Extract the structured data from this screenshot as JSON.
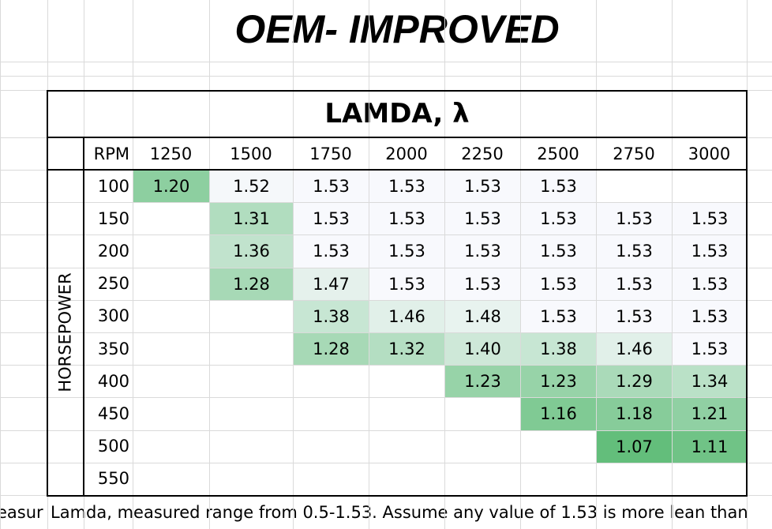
{
  "title": "OEM- IMPROVED",
  "table": {
    "caption": "LAMDA, λ",
    "axis_label": "HORSEPOWER",
    "corner": "RPM",
    "columns": [
      "1250",
      "1500",
      "1750",
      "2000",
      "2250",
      "2500",
      "2750",
      "3000"
    ],
    "rows": [
      {
        "label": "100",
        "cells": [
          "1.20",
          "1.52",
          "1.53",
          "1.53",
          "1.53",
          "1.53",
          null,
          null
        ]
      },
      {
        "label": "150",
        "cells": [
          null,
          "1.31",
          "1.53",
          "1.53",
          "1.53",
          "1.53",
          "1.53",
          "1.53"
        ]
      },
      {
        "label": "200",
        "cells": [
          null,
          "1.36",
          "1.53",
          "1.53",
          "1.53",
          "1.53",
          "1.53",
          "1.53"
        ]
      },
      {
        "label": "250",
        "cells": [
          null,
          "1.28",
          "1.47",
          "1.53",
          "1.53",
          "1.53",
          "1.53",
          "1.53"
        ]
      },
      {
        "label": "300",
        "cells": [
          null,
          null,
          "1.38",
          "1.46",
          "1.48",
          "1.53",
          "1.53",
          "1.53"
        ]
      },
      {
        "label": "350",
        "cells": [
          null,
          null,
          "1.28",
          "1.32",
          "1.40",
          "1.38",
          "1.46",
          "1.53"
        ]
      },
      {
        "label": "400",
        "cells": [
          null,
          null,
          null,
          null,
          "1.23",
          "1.23",
          "1.29",
          "1.34"
        ]
      },
      {
        "label": "450",
        "cells": [
          null,
          null,
          null,
          null,
          null,
          "1.16",
          "1.18",
          "1.21"
        ]
      },
      {
        "label": "500",
        "cells": [
          null,
          null,
          null,
          null,
          null,
          null,
          "1.07",
          "1.11"
        ]
      },
      {
        "label": "550",
        "cells": [
          null,
          null,
          null,
          null,
          null,
          null,
          null,
          null
        ]
      }
    ]
  },
  "footer": {
    "left": "easur",
    "note": "Lamda, measured range from 0.5-1.53. Assume any value of 1.53 is more lean than"
  }
}
